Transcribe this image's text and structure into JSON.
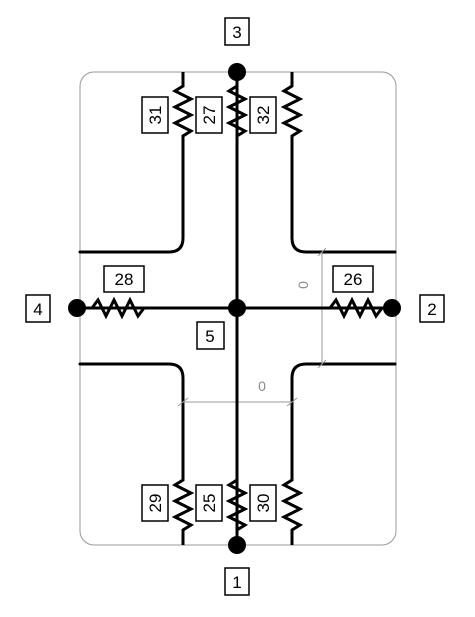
{
  "ports": {
    "top": "3",
    "right": "2",
    "bottom": "1",
    "left": "4",
    "center": "5"
  },
  "resistors": {
    "top_left": "31",
    "top_center": "27",
    "top_right": "32",
    "right": "26",
    "left": "28",
    "bottom_left": "29",
    "bottom_center": "25",
    "bottom_right": "30"
  },
  "dimensions": {
    "horizontal": "0",
    "vertical": "0"
  },
  "colors": {
    "wire": "#000000",
    "outline": "#999999",
    "dimension": "#999999"
  }
}
